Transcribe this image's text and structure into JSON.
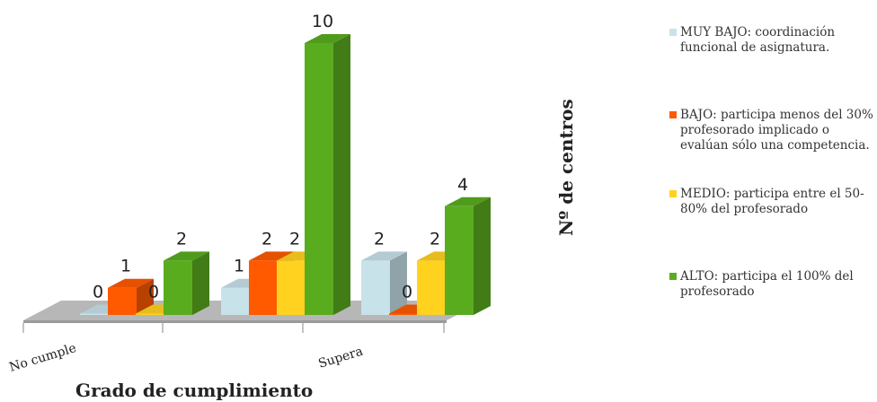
{
  "chart_data": {
    "type": "bar",
    "style": "3d-clustered",
    "categories": [
      "No cumple",
      "",
      "Supera"
    ],
    "xlabel": "Grado de cumplimiento",
    "ylabel": "Nº de centros",
    "ylim": [
      0,
      10
    ],
    "grid": false,
    "legend_position": "right",
    "series": [
      {
        "name": "MUY BAJO: coordinación funcional de asignatura.",
        "color": "#c8e2ea",
        "values": [
          0,
          1,
          2
        ]
      },
      {
        "name": "BAJO: participa menos del 30% profesorado implicado o evalúan sólo una competencia.",
        "color": "#ff5a00",
        "values": [
          1,
          2,
          0
        ]
      },
      {
        "name": "MEDIO: participa entre el 50-80% del profesorado",
        "color": "#ffd21f",
        "values": [
          0,
          2,
          2
        ]
      },
      {
        "name": "ALTO: participa el 100% del profesorado",
        "color": "#5aac1f",
        "values": [
          2,
          10,
          4
        ]
      }
    ],
    "data_labels": [
      [
        "0",
        "1",
        "0",
        "2"
      ],
      [
        "1",
        "2",
        "2",
        "10"
      ],
      [
        "2",
        "0",
        "2",
        "4"
      ]
    ]
  }
}
